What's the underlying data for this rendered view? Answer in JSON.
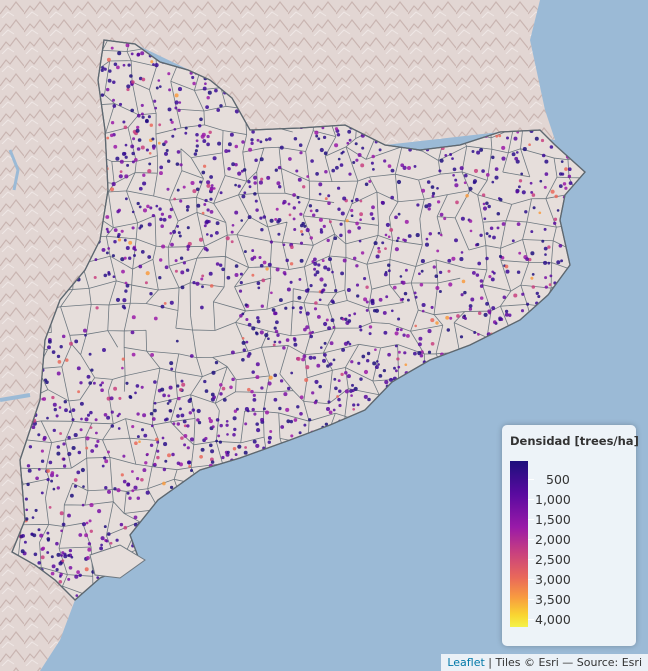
{
  "legend": {
    "title": "Densidad [trees/ha]",
    "ticks": [
      "500",
      "1,000",
      "1,500",
      "2,000",
      "2,500",
      "3,000",
      "3,500",
      "4,000"
    ],
    "colors": {
      "low": "#1d0f7c",
      "mid_low": "#5a0aa0",
      "mid": "#9a1aa8",
      "mid_high": "#e9685a",
      "high": "#f4f24a"
    }
  },
  "attribution": {
    "leaflet_link": "Leaflet",
    "separator": " | ",
    "tiles_text": "Tiles © Esri — Source: Esri"
  },
  "map_colors": {
    "sea": "#9bbad6",
    "land": "#e2d6d3",
    "relief": "#c8b4b0",
    "boundary": "#6e7880"
  }
}
